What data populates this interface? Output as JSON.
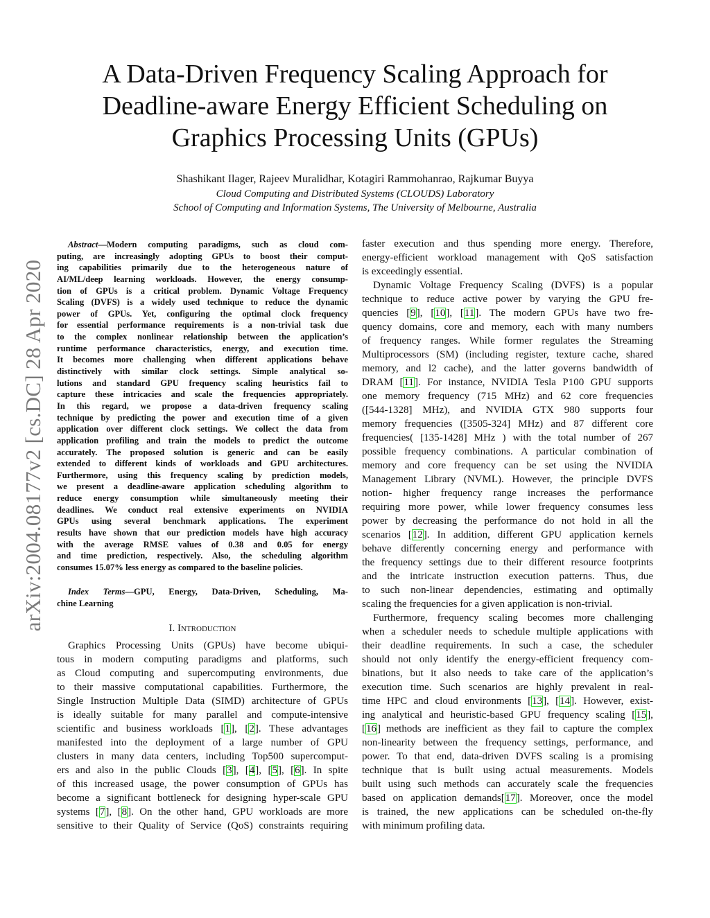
{
  "title": {
    "lines": [
      "A Data-Driven Frequency Scaling Approach for",
      "Deadline-aware Energy Efficient Scheduling on",
      "Graphics Processing Units (GPUs)"
    ]
  },
  "authors": "Shashikant Ilager, Rajeev Muralidhar, Kotagiri Rammohanrao, Rajkumar Buyya",
  "affiliation": [
    "Cloud Computing and Distributed Systems (CLOUDS) Laboratory",
    "School of Computing and Information Systems, The University of Melbourne, Australia"
  ],
  "arxiv_stamp": "arXiv:2004.08177v2  [cs.DC]  28 Apr 2020",
  "citation_box_color": "#2ee02e",
  "abstract": {
    "label": "Abstract",
    "lines": [
      "—Modern computing paradigms, such as cloud com-",
      "puting, are increasingly adopting GPUs to boost their comput-",
      "ing capabilities primarily due to the heterogeneous nature of",
      "AI/ML/deep learning workloads. However, the energy consump-",
      "tion of GPUs is a critical problem. Dynamic Voltage Frequency",
      "Scaling (DVFS) is a widely used technique to reduce the dynamic",
      "power of GPUs. Yet, configuring the optimal clock frequency",
      "for essential performance requirements is a non-trivial task due",
      "to the complex nonlinear relationship between the application’s",
      "runtime performance characteristics, energy, and execution time.",
      "It becomes more challenging when different applications behave",
      "distinctively with similar clock settings. Simple analytical so-",
      "lutions and standard GPU frequency scaling heuristics fail to",
      "capture these intricacies and scale the frequencies appropriately.",
      "In this regard, we propose a data-driven frequency scaling",
      "technique by predicting the power and execution time of a given",
      "application over different clock settings. We collect the data from",
      "application profiling and train the models to predict the outcome",
      "accurately. The proposed solution is generic and can be easily",
      "extended to different kinds of workloads and GPU architectures.",
      "Furthermore, using this frequency scaling by prediction models,",
      "we present a deadline-aware application scheduling algorithm to",
      "reduce energy consumption while simultaneously meeting their",
      "deadlines. We conduct real extensive experiments on NVIDIA",
      "GPUs using several benchmark applications. The experiment",
      "results have shown that our prediction models have high accuracy",
      "with the average RMSE values of 0.38 and 0.05 for energy",
      "and time prediction, respectively. Also, the scheduling algorithm",
      "consumes 15.07% less energy as compared to the baseline policies."
    ]
  },
  "index_terms": {
    "label": "Index Terms",
    "lines": [
      "—GPU, Energy, Data-Driven, Scheduling, Ma-",
      "chine Learning"
    ]
  },
  "section_heading": "I. Introduction",
  "intro_left": [
    "Graphics Processing Units (GPUs) have become ubiqui-",
    "tous in modern computing paradigms and platforms, such",
    "as Cloud computing and supercomputing environments, due",
    "to their massive computational capabilities. Furthermore, the",
    "Single Instruction Multiple Data (SIMD) architecture of GPUs",
    "is ideally suitable for many parallel and compute-intensive",
    "scientific and business workloads [1], [2]. These advantages",
    "manifested into the deployment of a large number of GPU",
    "clusters in many data centers, including Top500 supercomput-",
    "ers and also in the public Clouds [3], [4], [5], [6]. In spite",
    "of this increased usage, the power consumption of GPUs has",
    "become a significant bottleneck for designing hyper-scale GPU",
    "systems [7], [8]. On the other hand, GPU workloads are more",
    "sensitive to their Quality of Service (QoS) constraints requiring"
  ],
  "intro_right": [
    "faster execution and thus spending more energy. Therefore,",
    "energy-efficient workload management with QoS satisfaction",
    "is exceedingly essential.",
    "Dynamic Voltage Frequency Scaling (DVFS) is a popular",
    "technique to reduce active power by varying the GPU fre-",
    "quencies [9], [10], [11]. The modern GPUs have two fre-",
    "quency domains, core and memory, each with many numbers",
    "of frequency ranges. While former regulates the Streaming",
    "Multiprocessors (SM) (including register, texture cache, shared",
    "memory, and l2 cache), and the latter governs bandwidth of",
    "DRAM [11]. For instance, NVIDIA Tesla P100 GPU supports",
    "one memory frequency (715 MHz) and 62 core frequencies",
    "([544-1328] MHz), and NVIDIA GTX 980 supports four",
    "memory frequencies ([3505-324] MHz) and 87 different core",
    "frequencies( [135-1428] MHz ) with the total number of 267",
    "possible frequency combinations. A particular combination of",
    "memory and core frequency can be set using the NVIDIA",
    "Management Library (NVML). However, the principle DVFS",
    "notion- higher frequency range increases the performance",
    "requiring more power, while lower frequency consumes less",
    "power by decreasing the performance do not hold in all the",
    "scenarios [12]. In addition, different GPU application kernels",
    "behave differently concerning energy and performance with",
    "the frequency settings due to their different resource footprints",
    "and the intricate instruction execution patterns. Thus, due",
    "to such non-linear dependencies, estimating and optimally",
    "scaling the frequencies for a given application is non-trivial.",
    "Furthermore, frequency scaling becomes more challenging",
    "when a scheduler needs to schedule multiple applications with",
    "their deadline requirements. In such a case, the scheduler",
    "should not only identify the energy-efficient frequency com-",
    "binations, but it also needs to take care of the application’s",
    "execution time. Such scenarios are highly prevalent in real-",
    "time HPC and cloud environments [13], [14]. However, exist-",
    "ing analytical and heuristic-based GPU frequency scaling [15],",
    "[16] methods are inefficient as they fail to capture the complex",
    "non-linearity between the frequency settings, performance, and",
    "power. To that end, data-driven DVFS scaling is a promising",
    "technique that is built using actual measurements. Models",
    "built using such methods can accurately scale the frequencies",
    "based on application demands[17]. Moreover, once the model",
    "is trained, the new applications can be scheduled on-the-fly",
    "with minimum profiling data."
  ]
}
